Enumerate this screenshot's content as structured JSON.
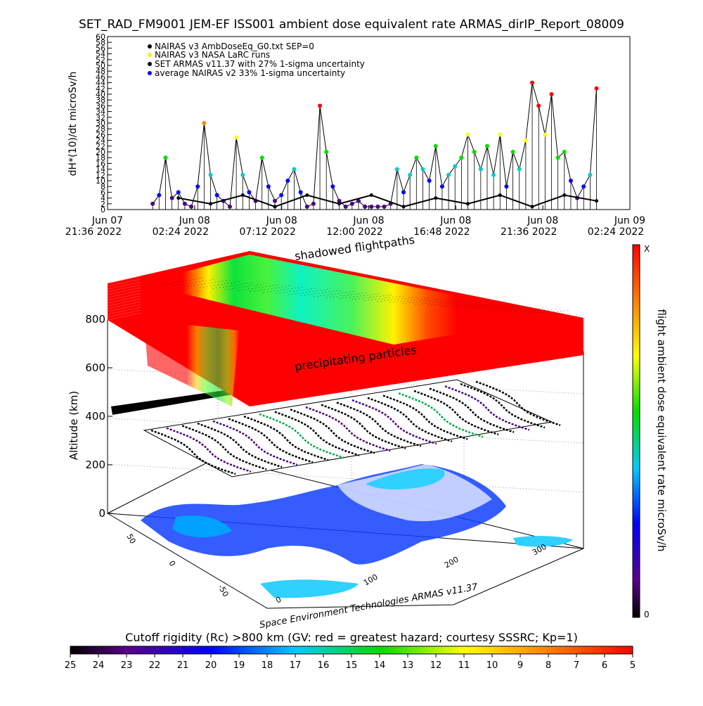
{
  "chart_data": [
    {
      "type": "line",
      "title": "SET_RAD_FM9001  JEM-EF ISS001 ambient dose equivalent rate ARMAS_dirIP_Report_08009",
      "ylabel": "dH*(10)/dt microSv/h",
      "ylim": [
        0,
        60
      ],
      "ytick_labels": [
        "0",
        "2",
        "4",
        "6",
        "8",
        "10",
        "12",
        "14",
        "16",
        "18",
        "20",
        "22",
        "24",
        "26",
        "28",
        "30",
        "32",
        "34",
        "36",
        "38",
        "40",
        "42",
        "44",
        "46",
        "48",
        "50",
        "52",
        "54",
        "56",
        "58",
        "60"
      ],
      "xtick_labels": [
        {
          "line1": "Jun 07",
          "line2": "21:36 2022"
        },
        {
          "line1": "Jun 08",
          "line2": "02:24 2022"
        },
        {
          "line1": "Jun 08",
          "line2": "07:12 2022"
        },
        {
          "line1": "Jun 08",
          "line2": "12:00 2022"
        },
        {
          "line1": "Jun 08",
          "line2": "16:48 2022"
        },
        {
          "line1": "Jun 08",
          "line2": "21:36 2022"
        },
        {
          "line1": "Jun 09",
          "line2": "02:24 2022"
        }
      ],
      "legend": [
        {
          "label": "NAIRAS v3 AmbDoseEq_G0.txt SEP=0",
          "color": "#000000"
        },
        {
          "label": "NAIRAS v3 NASA LaRC runs",
          "color": "#ffff00"
        },
        {
          "label": "SET ARMAS v11.37 with 27% 1-sigma uncertainty",
          "color": "#000000"
        },
        {
          "label": "average NAIRAS v2 33% 1-sigma uncertainty",
          "color": "#0000ff"
        }
      ],
      "legend_position": "top-left",
      "grid": false,
      "series": [
        {
          "name": "SET ARMAS v11.37 with 27% 1-sigma uncertainty",
          "x": [
            0.1,
            0.2,
            0.3,
            0.4,
            0.5,
            0.6,
            0.7,
            0.8,
            0.9,
            1.0,
            1.1,
            1.2,
            1.3,
            1.4,
            1.5,
            1.6,
            1.7,
            1.8,
            1.9,
            2.0,
            2.1,
            2.2,
            2.3,
            2.4,
            2.5,
            2.6,
            2.7,
            2.8,
            2.9,
            3.0,
            3.1,
            3.2,
            3.3,
            3.4,
            3.5,
            3.6,
            3.7,
            3.8,
            3.9,
            4.0,
            4.1,
            4.2,
            4.3,
            4.4,
            4.5,
            4.6,
            4.7,
            4.8,
            4.9,
            5.0,
            5.1,
            5.2,
            5.3,
            5.4,
            5.5,
            5.6,
            5.7,
            5.8,
            5.9,
            6.0,
            6.1,
            6.2,
            6.3,
            6.4,
            6.5,
            6.6,
            6.7,
            6.8,
            6.9,
            7.0
          ],
          "y": [
            2,
            5,
            18,
            4,
            6,
            2,
            1,
            8,
            30,
            12,
            5,
            3,
            1,
            25,
            12,
            6,
            3,
            18,
            8,
            3,
            5,
            10,
            14,
            6,
            1,
            2,
            36,
            20,
            8,
            3,
            1,
            2,
            3,
            1,
            1,
            1,
            1,
            2,
            14,
            6,
            12,
            18,
            14,
            10,
            22,
            8,
            12,
            15,
            18,
            26,
            20,
            14,
            22,
            12,
            26,
            8,
            20,
            14,
            24,
            44,
            36,
            26,
            40,
            18,
            20,
            10,
            4,
            8,
            12,
            42
          ]
        },
        {
          "name": "NAIRAS v3 AmbDoseEq_G0.txt SEP=0",
          "x": [
            0.5,
            1.0,
            1.5,
            2.0,
            2.5,
            3.0,
            3.5,
            4.0,
            4.5,
            5.0,
            5.5,
            6.0,
            6.5,
            7.0
          ],
          "y": [
            4,
            2,
            5,
            1,
            5,
            2,
            5,
            1,
            4,
            2,
            5,
            1,
            5,
            3
          ]
        }
      ]
    },
    {
      "type": "other",
      "ylabel": "Altitude (km)",
      "ztick_labels": [
        "0",
        "200",
        "400",
        "600",
        "800"
      ],
      "lat_tick_labels": [
        "50",
        "0",
        "-50"
      ],
      "lon_tick_labels": [
        "0",
        "100",
        "200",
        "300"
      ],
      "labels": [
        "shadowed flightpaths",
        "precipitating particles"
      ],
      "credit": "Space Environment Technologies ARMAS v11.37"
    }
  ],
  "colorbar_right": {
    "label": "flight ambient dose equivalent rate microSv/h",
    "top_label": "X",
    "bottom_label": "0"
  },
  "colorbar_bottom": {
    "title": "Cutoff rigidity (Rc) >800 km (GV: red = greatest hazard; courtesy SSSRC; Kp=1)",
    "tick_labels": [
      "25",
      "24",
      "23",
      "22",
      "21",
      "20",
      "19",
      "18",
      "17",
      "16",
      "15",
      "14",
      "13",
      "12",
      "11",
      "10",
      "9",
      "8",
      "7",
      "6",
      "5"
    ]
  },
  "colors": {
    "hazard_red": "#ff0000",
    "land_blue": "#1040ff",
    "ocean_cyan": "#30d0ff"
  }
}
